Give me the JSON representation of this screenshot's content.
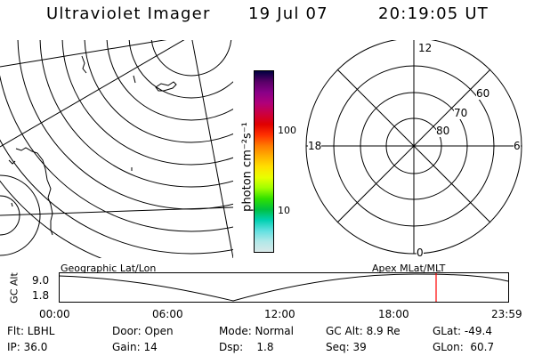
{
  "header": {
    "title": "Ultraviolet Imager",
    "date": "19 Jul 07",
    "time": "20:19:05 UT"
  },
  "colorbar": {
    "unit_label": "photon cm⁻²s⁻¹",
    "tick_100": "100",
    "tick_10": "10",
    "colors": [
      "#000040",
      "#5a0068",
      "#8a0088",
      "#b0007a",
      "#cc0040",
      "#e00000",
      "#ff3000",
      "#ff7a00",
      "#ffb000",
      "#ffe000",
      "#e8ff00",
      "#a0ff00",
      "#30e000",
      "#00c040",
      "#00d0b0",
      "#60e0e0",
      "#b0e8e8",
      "#d8e8e8"
    ]
  },
  "polar": {
    "lat_labels": [
      "60",
      "70",
      "80"
    ],
    "mlt_labels": {
      "top": "12",
      "left": "18",
      "right": "6",
      "bottom": "0"
    }
  },
  "strip": {
    "left_title": "Geographic Lat/Lon",
    "right_title": "Apex  MLat/MLT",
    "axis_label": "GC Alt",
    "y_top": "9.0",
    "y_bottom": "1.8",
    "x_ticks": [
      "00:00",
      "06:00",
      "12:00",
      "18:00",
      "23:59"
    ],
    "current_time_marker_color": "#ff0000"
  },
  "status": {
    "row1": {
      "flt": "Flt: LBHL",
      "door": "Door: Open",
      "mode": "Mode: Normal",
      "gcalt": "GC Alt: 8.9 Re",
      "glat": "GLat: -49.4"
    },
    "row2": {
      "ip": "IP: 36.0",
      "gain": "Gain: 14",
      "dsp": "Dsp:    1.8",
      "seq": "Seq: 39",
      "glon": "GLon:  60.7"
    }
  }
}
